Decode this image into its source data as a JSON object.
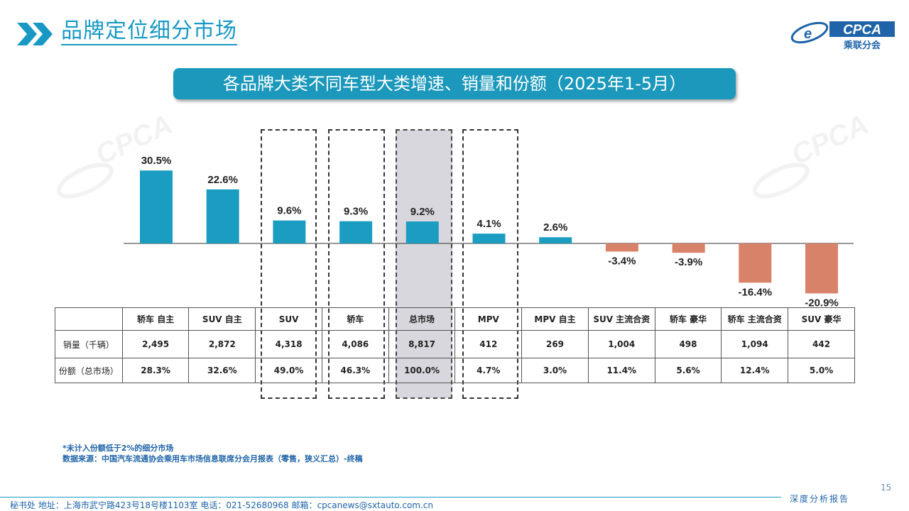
{
  "header": {
    "title": "品牌定位细分市场",
    "logo_text": "CPCA",
    "logo_subtext": "乘联分会"
  },
  "subtitle": "各品牌大类不同车型大类增速、销量和份额（2025年1-5月）",
  "colors": {
    "positive": "#1b9dc2",
    "negative": "#d9826a",
    "accent": "#1899c4"
  },
  "chart_data": {
    "type": "bar",
    "categories": [
      "轿车 自主",
      "SUV 自主",
      "SUV",
      "轿车",
      "总市场",
      "MPV",
      "MPV 自主",
      "SUV 主流合资",
      "轿车 豪华",
      "轿车 主流合资",
      "SUV 豪华"
    ],
    "values": [
      30.5,
      22.6,
      9.6,
      9.3,
      9.2,
      4.1,
      2.6,
      -3.4,
      -3.9,
      -16.4,
      -20.9
    ],
    "labels": [
      "30.5%",
      "22.6%",
      "9.6%",
      "9.3%",
      "9.2%",
      "4.1%",
      "2.6%",
      "-3.4%",
      "-3.9%",
      "-16.4%",
      "-20.9%"
    ],
    "ylim": [
      -22,
      31
    ],
    "highlighted_dashed": [
      "SUV",
      "轿车",
      "MPV"
    ],
    "highlighted_shaded": [
      "总市场"
    ]
  },
  "table": {
    "rows": [
      {
        "label": "销量（千辆）",
        "values": [
          "2,495",
          "2,872",
          "4,318",
          "4,086",
          "8,817",
          "412",
          "269",
          "1,004",
          "498",
          "1,094",
          "442"
        ]
      },
      {
        "label": "份额（总市场）",
        "values": [
          "28.3%",
          "32.6%",
          "49.0%",
          "46.3%",
          "100.0%",
          "4.7%",
          "3.0%",
          "11.4%",
          "5.6%",
          "12.4%",
          "5.0%"
        ]
      }
    ]
  },
  "footnote": {
    "line1": "*未计入份额低于2%的细分市场",
    "line2": "数据来源：中国汽车流通协会乘用车市场信息联席分会月报表（零售，狭义汇总）-终稿"
  },
  "footer": {
    "text": "秘书处   地址：上海市武宁路423号18号楼1103室   电话：021-52680968   邮箱：cpcanews@sxtauto.com.cn",
    "page_number": "15",
    "report_tag": "深度分析报告"
  }
}
